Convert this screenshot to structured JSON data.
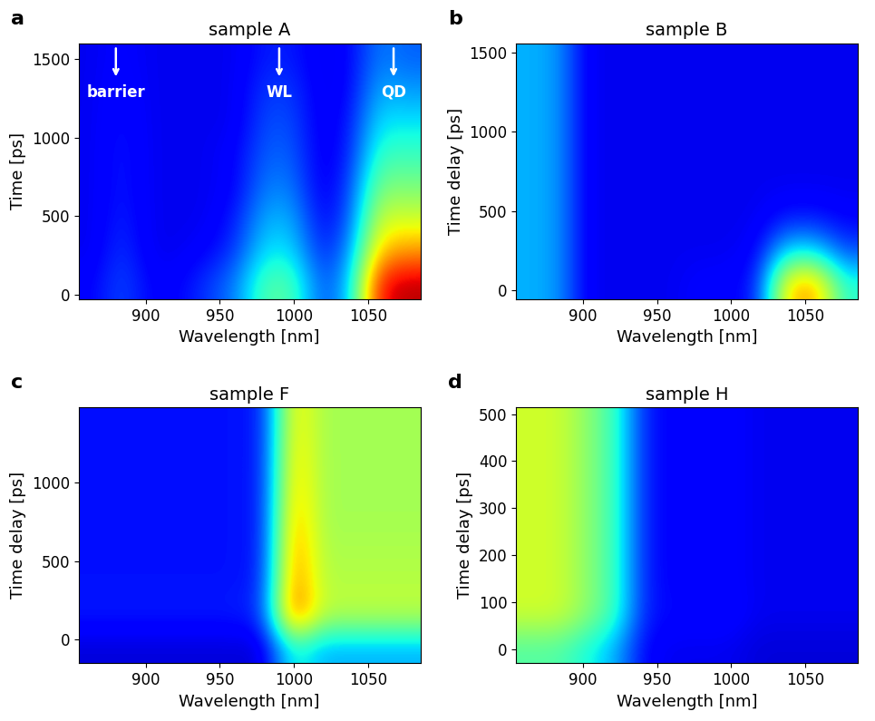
{
  "chart_data": [
    {
      "type": "heatmap",
      "panel_label": "a",
      "title": "sample A",
      "x_label": "Wavelength [nm]",
      "y_label": "Time [ps]",
      "xlim": [
        855,
        1085
      ],
      "ylim": [
        -30,
        1600
      ],
      "xticks": [
        900,
        950,
        1000,
        1050
      ],
      "yticks": [
        0,
        500,
        1000,
        1500
      ],
      "color": "jet",
      "value_range": [
        0,
        1
      ],
      "annotations": [
        {
          "text": "barrier",
          "x": 880
        },
        {
          "text": "WL",
          "x": 990
        },
        {
          "text": "QD",
          "x": 1067
        }
      ],
      "cells": [
        [
          0.12,
          0.2,
          0.12,
          0.12,
          0.18,
          0.25,
          0.45,
          0.45,
          0.2,
          0.3,
          0.9,
          0.95
        ],
        [
          0.1,
          0.18,
          0.1,
          0.1,
          0.12,
          0.18,
          0.35,
          0.35,
          0.15,
          0.25,
          0.7,
          0.75
        ],
        [
          0.1,
          0.16,
          0.1,
          0.1,
          0.1,
          0.15,
          0.3,
          0.3,
          0.12,
          0.2,
          0.6,
          0.6
        ],
        [
          0.1,
          0.15,
          0.1,
          0.1,
          0.1,
          0.12,
          0.25,
          0.25,
          0.1,
          0.18,
          0.5,
          0.5
        ],
        [
          0.1,
          0.15,
          0.1,
          0.1,
          0.1,
          0.12,
          0.22,
          0.22,
          0.1,
          0.15,
          0.42,
          0.42
        ],
        [
          0.1,
          0.14,
          0.1,
          0.1,
          0.1,
          0.1,
          0.2,
          0.2,
          0.1,
          0.14,
          0.35,
          0.35
        ],
        [
          0.1,
          0.13,
          0.1,
          0.1,
          0.1,
          0.1,
          0.18,
          0.18,
          0.1,
          0.12,
          0.3,
          0.28
        ],
        [
          0.1,
          0.12,
          0.1,
          0.1,
          0.1,
          0.1,
          0.15,
          0.15,
          0.1,
          0.12,
          0.25,
          0.22
        ]
      ]
    },
    {
      "type": "heatmap",
      "panel_label": "b",
      "title": "sample B",
      "x_label": "Wavelength [nm]",
      "y_label": "Time delay [ps]",
      "xlim": [
        855,
        1085
      ],
      "ylim": [
        -60,
        1560
      ],
      "xticks": [
        900,
        950,
        1000,
        1050
      ],
      "yticks": [
        0,
        500,
        1000,
        1500
      ],
      "color": "jet",
      "value_range": [
        0,
        1
      ],
      "cells": [
        [
          0.3,
          0.28,
          0.1,
          0.1,
          0.1,
          0.1,
          0.12,
          0.12,
          0.15,
          0.7,
          0.75,
          0.4
        ],
        [
          0.3,
          0.28,
          0.1,
          0.1,
          0.1,
          0.1,
          0.1,
          0.1,
          0.12,
          0.35,
          0.35,
          0.2
        ],
        [
          0.3,
          0.28,
          0.1,
          0.1,
          0.1,
          0.1,
          0.1,
          0.1,
          0.1,
          0.15,
          0.15,
          0.12
        ],
        [
          0.3,
          0.28,
          0.1,
          0.1,
          0.1,
          0.1,
          0.1,
          0.1,
          0.1,
          0.1,
          0.1,
          0.1
        ],
        [
          0.3,
          0.28,
          0.1,
          0.1,
          0.1,
          0.1,
          0.1,
          0.1,
          0.1,
          0.1,
          0.1,
          0.1
        ],
        [
          0.3,
          0.28,
          0.1,
          0.1,
          0.1,
          0.1,
          0.1,
          0.1,
          0.1,
          0.1,
          0.1,
          0.1
        ],
        [
          0.3,
          0.28,
          0.1,
          0.1,
          0.1,
          0.1,
          0.1,
          0.1,
          0.1,
          0.1,
          0.1,
          0.1
        ],
        [
          0.3,
          0.28,
          0.1,
          0.1,
          0.1,
          0.1,
          0.1,
          0.1,
          0.1,
          0.1,
          0.1,
          0.1
        ]
      ]
    },
    {
      "type": "heatmap",
      "panel_label": "c",
      "title": "sample F",
      "x_label": "Wavelength [nm]",
      "y_label": "Time delay [ps]",
      "xlim": [
        855,
        1085
      ],
      "ylim": [
        -150,
        1480
      ],
      "xticks": [
        900,
        950,
        1000,
        1050
      ],
      "yticks": [
        0,
        500,
        1000
      ],
      "color": "jet",
      "value_range": [
        0,
        1
      ],
      "cells": [
        [
          0.08,
          0.08,
          0.08,
          0.08,
          0.08,
          0.08,
          0.08,
          0.4,
          0.3,
          0.3,
          0.3,
          0.3
        ],
        [
          0.15,
          0.15,
          0.15,
          0.15,
          0.15,
          0.15,
          0.18,
          0.85,
          0.58,
          0.58,
          0.58,
          0.58
        ],
        [
          0.14,
          0.14,
          0.14,
          0.14,
          0.14,
          0.14,
          0.16,
          0.8,
          0.57,
          0.57,
          0.57,
          0.57
        ],
        [
          0.14,
          0.14,
          0.14,
          0.14,
          0.14,
          0.14,
          0.15,
          0.78,
          0.56,
          0.56,
          0.56,
          0.56
        ],
        [
          0.14,
          0.14,
          0.14,
          0.14,
          0.14,
          0.14,
          0.15,
          0.75,
          0.55,
          0.55,
          0.55,
          0.55
        ],
        [
          0.14,
          0.14,
          0.14,
          0.14,
          0.14,
          0.14,
          0.15,
          0.72,
          0.55,
          0.55,
          0.55,
          0.55
        ],
        [
          0.14,
          0.14,
          0.14,
          0.14,
          0.14,
          0.14,
          0.15,
          0.7,
          0.55,
          0.55,
          0.55,
          0.55
        ],
        [
          0.14,
          0.14,
          0.14,
          0.14,
          0.14,
          0.14,
          0.15,
          0.68,
          0.55,
          0.55,
          0.55,
          0.55
        ]
      ]
    },
    {
      "type": "heatmap",
      "panel_label": "d",
      "title": "sample H",
      "x_label": "Wavelength [nm]",
      "y_label": "Time delay [ps]",
      "xlim": [
        855,
        1085
      ],
      "ylim": [
        -30,
        515
      ],
      "xticks": [
        900,
        950,
        1000,
        1050
      ],
      "yticks": [
        0,
        100,
        200,
        300,
        400,
        500
      ],
      "color": "jet",
      "value_range": [
        0,
        1
      ],
      "cells": [
        [
          0.45,
          0.45,
          0.38,
          0.3,
          0.12,
          0.1,
          0.1,
          0.1,
          0.08,
          0.08,
          0.08,
          0.08
        ],
        [
          0.6,
          0.6,
          0.52,
          0.42,
          0.15,
          0.13,
          0.13,
          0.13,
          0.1,
          0.1,
          0.1,
          0.1
        ],
        [
          0.6,
          0.6,
          0.52,
          0.42,
          0.15,
          0.12,
          0.12,
          0.12,
          0.1,
          0.1,
          0.1,
          0.1
        ],
        [
          0.6,
          0.6,
          0.52,
          0.42,
          0.15,
          0.12,
          0.12,
          0.12,
          0.1,
          0.1,
          0.1,
          0.1
        ],
        [
          0.6,
          0.6,
          0.52,
          0.42,
          0.15,
          0.12,
          0.12,
          0.12,
          0.1,
          0.1,
          0.1,
          0.1
        ],
        [
          0.6,
          0.6,
          0.52,
          0.42,
          0.15,
          0.12,
          0.12,
          0.12,
          0.1,
          0.1,
          0.1,
          0.1
        ],
        [
          0.6,
          0.6,
          0.52,
          0.42,
          0.15,
          0.12,
          0.12,
          0.12,
          0.1,
          0.1,
          0.1,
          0.1
        ],
        [
          0.6,
          0.6,
          0.52,
          0.42,
          0.15,
          0.12,
          0.12,
          0.12,
          0.1,
          0.1,
          0.1,
          0.1
        ]
      ]
    }
  ]
}
